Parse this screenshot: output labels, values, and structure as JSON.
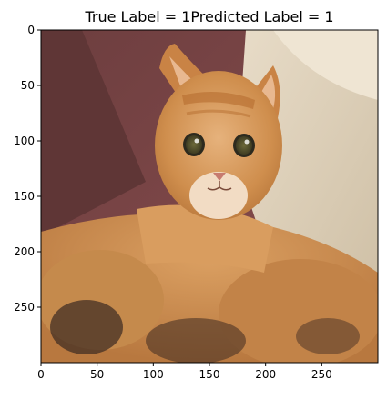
{
  "figure": {
    "title": "True Label = 1Predicted Label = 1",
    "image_content": "orange-tabby-cat-photo",
    "x_axis": {
      "range": [
        0,
        300
      ],
      "ticks": [
        0,
        50,
        100,
        150,
        200,
        250
      ],
      "tick_labels": [
        "0",
        "50",
        "100",
        "150",
        "200",
        "250"
      ]
    },
    "y_axis": {
      "range": [
        0,
        300
      ],
      "inverted": true,
      "ticks": [
        0,
        50,
        100,
        150,
        200,
        250
      ],
      "tick_labels": [
        "0",
        "50",
        "100",
        "150",
        "200",
        "250"
      ]
    },
    "colors": {
      "axes": "#000000",
      "background": "#ffffff"
    }
  }
}
